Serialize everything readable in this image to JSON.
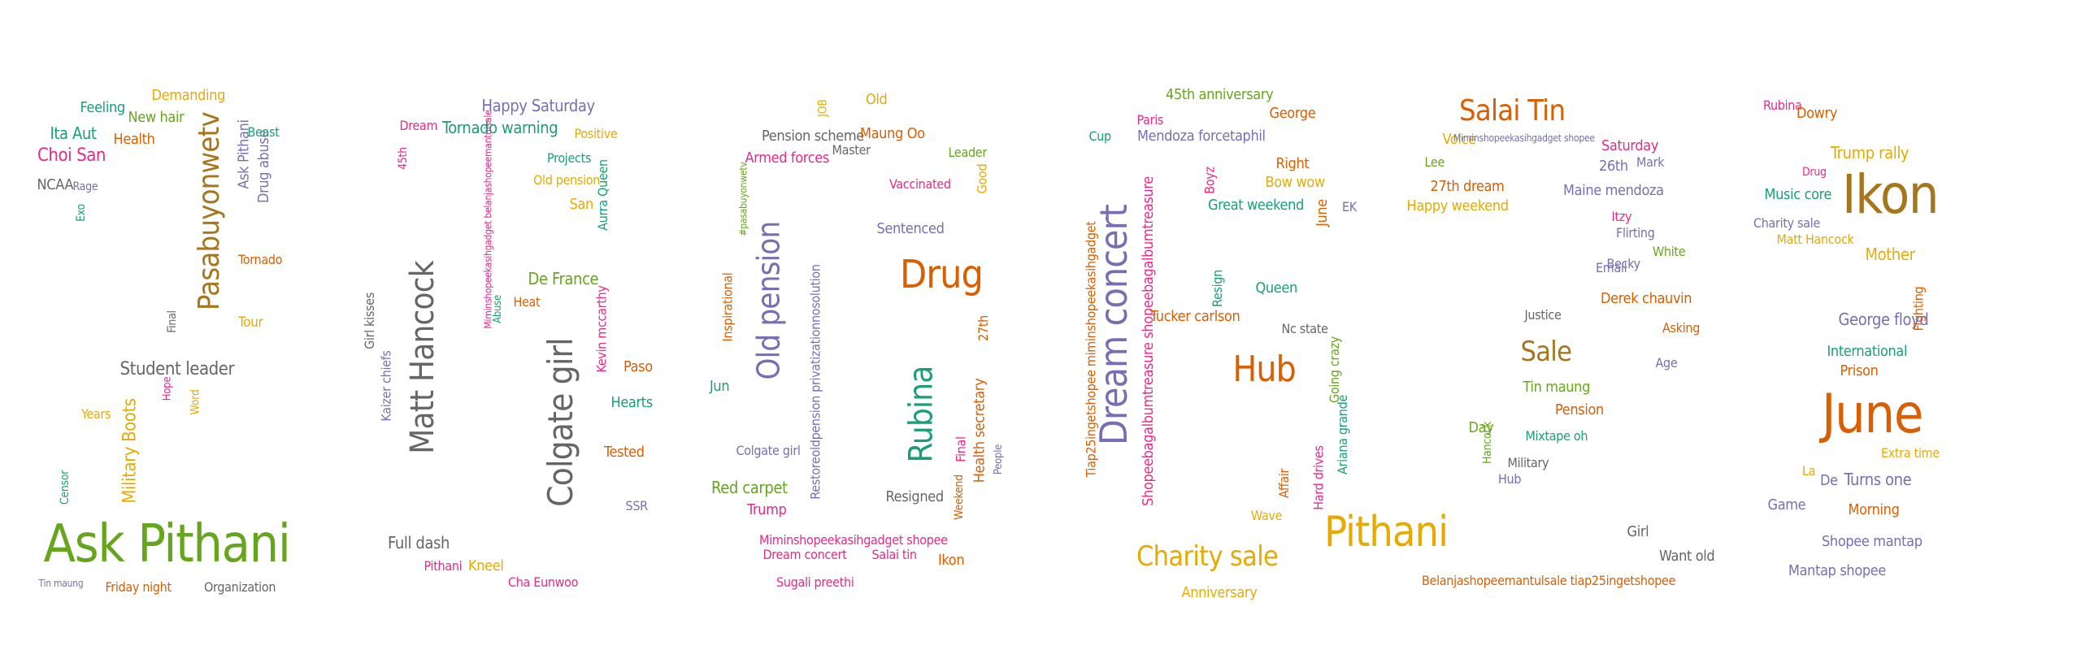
{
  "palette": {
    "green": "#66a61e",
    "orange": "#d95f02",
    "purple": "#7570b3",
    "pink": "#e7298a",
    "teal": "#1b9e77",
    "gold": "#e6ab02",
    "brown": "#a6761d",
    "gray": "#666666"
  },
  "words": [
    {
      "text": "Ask Pithani",
      "color": "green"
    },
    {
      "text": "Pasabuyonwetv",
      "color": "brown"
    },
    {
      "text": "Military Boots",
      "color": "gold"
    },
    {
      "text": "Student leader",
      "color": "gray"
    },
    {
      "text": "Choi San",
      "color": "pink"
    },
    {
      "text": "Ita Aut",
      "color": "teal"
    },
    {
      "text": "NCAA",
      "color": "gray"
    },
    {
      "text": "Feeling",
      "color": "teal"
    },
    {
      "text": "Demanding",
      "color": "gold"
    },
    {
      "text": "New hair",
      "color": "green"
    },
    {
      "text": "Health",
      "color": "orange"
    },
    {
      "text": "Ask Pithani",
      "color": "purple"
    },
    {
      "text": "Drug abuse",
      "color": "purple"
    },
    {
      "text": "Beast",
      "color": "teal"
    },
    {
      "text": "Tornado",
      "color": "orange"
    },
    {
      "text": "Tour",
      "color": "gold"
    },
    {
      "text": "Final",
      "color": "gray"
    },
    {
      "text": "Friday night",
      "color": "orange"
    },
    {
      "text": "Organization",
      "color": "gray"
    },
    {
      "text": "Years",
      "color": "gold"
    },
    {
      "text": "Censor",
      "color": "teal"
    },
    {
      "text": "Word",
      "color": "gold"
    },
    {
      "text": "Hope",
      "color": "pink"
    },
    {
      "text": "Rage",
      "color": "purple"
    },
    {
      "text": "Exo",
      "color": "teal"
    },
    {
      "text": "Tin maung",
      "color": "purple"
    },
    {
      "text": "Matt Hancock",
      "color": "gray"
    },
    {
      "text": "Colgate girl",
      "color": "gray"
    },
    {
      "text": "Miminshopeekasihgadget belanjashopeemantulsale",
      "color": "pink"
    },
    {
      "text": "Tornado warning",
      "color": "teal"
    },
    {
      "text": "Happy Saturday",
      "color": "purple"
    },
    {
      "text": "Positive",
      "color": "gold"
    },
    {
      "text": "Projects",
      "color": "teal"
    },
    {
      "text": "Old pension",
      "color": "gold"
    },
    {
      "text": "San",
      "color": "gold"
    },
    {
      "text": "Aurra Queen",
      "color": "teal"
    },
    {
      "text": "Dream",
      "color": "pink"
    },
    {
      "text": "45th",
      "color": "pink"
    },
    {
      "text": "Girl kisses",
      "color": "gray"
    },
    {
      "text": "Kaizer chiefs",
      "color": "purple"
    },
    {
      "text": "De France",
      "color": "green"
    },
    {
      "text": "Heat",
      "color": "orange"
    },
    {
      "text": "Kevin mccarthy",
      "color": "pink"
    },
    {
      "text": "Abuse",
      "color": "teal"
    },
    {
      "text": "Paso",
      "color": "orange"
    },
    {
      "text": "Hearts",
      "color": "teal"
    },
    {
      "text": "Tested",
      "color": "orange"
    },
    {
      "text": "SSR",
      "color": "purple"
    },
    {
      "text": "Full dash",
      "color": "gray"
    },
    {
      "text": "Pithani",
      "color": "pink"
    },
    {
      "text": "Kneel",
      "color": "gold"
    },
    {
      "text": "Cha Eunwoo",
      "color": "pink"
    },
    {
      "text": "Old pension",
      "color": "purple"
    },
    {
      "text": "Rubina",
      "color": "teal"
    },
    {
      "text": "Drug",
      "color": "orange"
    },
    {
      "text": "Pension scheme",
      "color": "gray"
    },
    {
      "text": "Armed forces",
      "color": "pink"
    },
    {
      "text": "Maung Oo",
      "color": "orange"
    },
    {
      "text": "Master",
      "color": "gray"
    },
    {
      "text": "Leader",
      "color": "green"
    },
    {
      "text": "Vaccinated",
      "color": "pink"
    },
    {
      "text": "Good",
      "color": "gold"
    },
    {
      "text": "Sentenced",
      "color": "purple"
    },
    {
      "text": "Old",
      "color": "gold"
    },
    {
      "text": "JOB",
      "color": "gold"
    },
    {
      "text": "#pasabuyonwetv",
      "color": "green"
    },
    {
      "text": "Inspirational",
      "color": "orange"
    },
    {
      "text": "Colgate girl",
      "color": "purple"
    },
    {
      "text": "Jun",
      "color": "teal"
    },
    {
      "text": "Restoreoldpension privatizationnosolution",
      "color": "purple"
    },
    {
      "text": "Health secretary",
      "color": "orange"
    },
    {
      "text": "27th",
      "color": "orange"
    },
    {
      "text": "Final",
      "color": "pink"
    },
    {
      "text": "People",
      "color": "purple"
    },
    {
      "text": "Weekend",
      "color": "orange"
    },
    {
      "text": "Resigned",
      "color": "gray"
    },
    {
      "text": "Red carpet",
      "color": "green"
    },
    {
      "text": "Trump",
      "color": "pink"
    },
    {
      "text": "Miminshopeekasihgadget shopee",
      "color": "pink"
    },
    {
      "text": "Dream concert",
      "color": "pink"
    },
    {
      "text": "Salai tin",
      "color": "pink"
    },
    {
      "text": "Sugali preethi",
      "color": "pink"
    },
    {
      "text": "Ikon",
      "color": "orange"
    },
    {
      "text": "Dream concert",
      "color": "purple"
    },
    {
      "text": "Shopeebagalbumtreasure shopeebagalbumtreasure",
      "color": "pink"
    },
    {
      "text": "Tiap25ingetshopee miminshopeekasihgadget",
      "color": "orange"
    },
    {
      "text": "45th anniversary",
      "color": "green"
    },
    {
      "text": "George",
      "color": "orange"
    },
    {
      "text": "Paris",
      "color": "pink"
    },
    {
      "text": "Cup",
      "color": "teal"
    },
    {
      "text": "Mendoza forcetaphil",
      "color": "purple"
    },
    {
      "text": "Right",
      "color": "orange"
    },
    {
      "text": "Bow wow",
      "color": "gold"
    },
    {
      "text": "Great weekend",
      "color": "teal"
    },
    {
      "text": "EK",
      "color": "purple"
    },
    {
      "text": "June",
      "color": "orange"
    },
    {
      "text": "Boyz",
      "color": "pink"
    },
    {
      "text": "Resign",
      "color": "teal"
    },
    {
      "text": "Queen",
      "color": "teal"
    },
    {
      "text": "Tucker carlson",
      "color": "orange"
    },
    {
      "text": "Nc state",
      "color": "gray"
    },
    {
      "text": "Hub",
      "color": "orange"
    },
    {
      "text": "Going crazy",
      "color": "green"
    },
    {
      "text": "Ariana grande",
      "color": "teal"
    },
    {
      "text": "Hard drives",
      "color": "pink"
    },
    {
      "text": "Affair",
      "color": "orange"
    },
    {
      "text": "Wave",
      "color": "gold"
    },
    {
      "text": "Charity sale",
      "color": "gold"
    },
    {
      "text": "Anniversary",
      "color": "gold"
    },
    {
      "text": "Salai Tin",
      "color": "orange"
    },
    {
      "text": "Voice",
      "color": "gold"
    },
    {
      "text": "Miminshopeekasihgadget shopee",
      "color": "purple"
    },
    {
      "text": "Saturday",
      "color": "pink"
    },
    {
      "text": "26th",
      "color": "purple"
    },
    {
      "text": "Mark",
      "color": "purple"
    },
    {
      "text": "Lee",
      "color": "green"
    },
    {
      "text": "27th dream",
      "color": "orange"
    },
    {
      "text": "Happy weekend",
      "color": "gold"
    },
    {
      "text": "Maine mendoza",
      "color": "purple"
    },
    {
      "text": "Itzy",
      "color": "pink"
    },
    {
      "text": "Flirting",
      "color": "purple"
    },
    {
      "text": "Becky",
      "color": "purple"
    },
    {
      "text": "White",
      "color": "green"
    },
    {
      "text": "Email",
      "color": "purple"
    },
    {
      "text": "Derek chauvin",
      "color": "orange"
    },
    {
      "text": "Justice",
      "color": "gray"
    },
    {
      "text": "Asking",
      "color": "orange"
    },
    {
      "text": "Sale",
      "color": "brown"
    },
    {
      "text": "Age",
      "color": "purple"
    },
    {
      "text": "Tin maung",
      "color": "green"
    },
    {
      "text": "Pension",
      "color": "orange"
    },
    {
      "text": "Day",
      "color": "green"
    },
    {
      "text": "Mixtape oh",
      "color": "teal"
    },
    {
      "text": "Hancock",
      "color": "green"
    },
    {
      "text": "Military",
      "color": "gray"
    },
    {
      "text": "Hub",
      "color": "purple"
    },
    {
      "text": "Pithani",
      "color": "gold"
    },
    {
      "text": "Girl",
      "color": "gray"
    },
    {
      "text": "Want old",
      "color": "gray"
    },
    {
      "text": "Belanjashopeemantulsale tiap25ingetshopee",
      "color": "orange"
    },
    {
      "text": "Rubina",
      "color": "pink"
    },
    {
      "text": "Dowry",
      "color": "orange"
    },
    {
      "text": "Ikon",
      "color": "brown"
    },
    {
      "text": "Trump rally",
      "color": "gold"
    },
    {
      "text": "Drug",
      "color": "pink"
    },
    {
      "text": "Music core",
      "color": "teal"
    },
    {
      "text": "Charity sale",
      "color": "purple"
    },
    {
      "text": "Matt Hancock",
      "color": "gold"
    },
    {
      "text": "Mother",
      "color": "gold"
    },
    {
      "text": "Fighting",
      "color": "orange"
    },
    {
      "text": "George floyd",
      "color": "purple"
    },
    {
      "text": "International",
      "color": "teal"
    },
    {
      "text": "Prison",
      "color": "orange"
    },
    {
      "text": "June",
      "color": "orange"
    },
    {
      "text": "Extra time",
      "color": "gold"
    },
    {
      "text": "De",
      "color": "purple"
    },
    {
      "text": "La",
      "color": "gold"
    },
    {
      "text": "Turns one",
      "color": "purple"
    },
    {
      "text": "Game",
      "color": "purple"
    },
    {
      "text": "Morning",
      "color": "orange"
    },
    {
      "text": "Shopee mantap",
      "color": "purple"
    },
    {
      "text": "Mantap shopee",
      "color": "purple"
    }
  ]
}
